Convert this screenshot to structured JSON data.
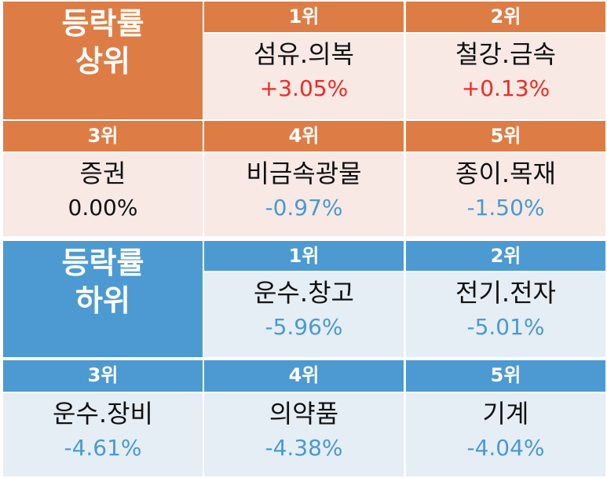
{
  "top": {
    "title_line1": "등락률",
    "title_line2": "상위",
    "items": [
      {
        "rank": "1위",
        "name": "섬유.의복",
        "change": "+3.05%"
      },
      {
        "rank": "2위",
        "name": "철강.금속",
        "change": "+0.13%"
      },
      {
        "rank": "3위",
        "name": "증권",
        "change": "0.00%"
      },
      {
        "rank": "4위",
        "name": "비금속광물",
        "change": "-0.97%"
      },
      {
        "rank": "5위",
        "name": "종이.목재",
        "change": "-1.50%"
      }
    ]
  },
  "bottom": {
    "title_line1": "등락률",
    "title_line2": "하위",
    "items": [
      {
        "rank": "1위",
        "name": "운수.창고",
        "change": "-5.96%"
      },
      {
        "rank": "2위",
        "name": "전기.전자",
        "change": "-5.01%"
      },
      {
        "rank": "3위",
        "name": "운수.장비",
        "change": "-4.61%"
      },
      {
        "rank": "4위",
        "name": "의약품",
        "change": "-4.38%"
      },
      {
        "rank": "5위",
        "name": "기계",
        "change": "-4.04%"
      }
    ]
  },
  "colors": {
    "top_header": "#dd7d45",
    "top_cell": "#f8e9e5",
    "bottom_header": "#4c9ad1",
    "bottom_cell": "#e5edf5",
    "positive": "#ee2b25",
    "negative": "#4a9ad0",
    "neutral": "#111111"
  }
}
